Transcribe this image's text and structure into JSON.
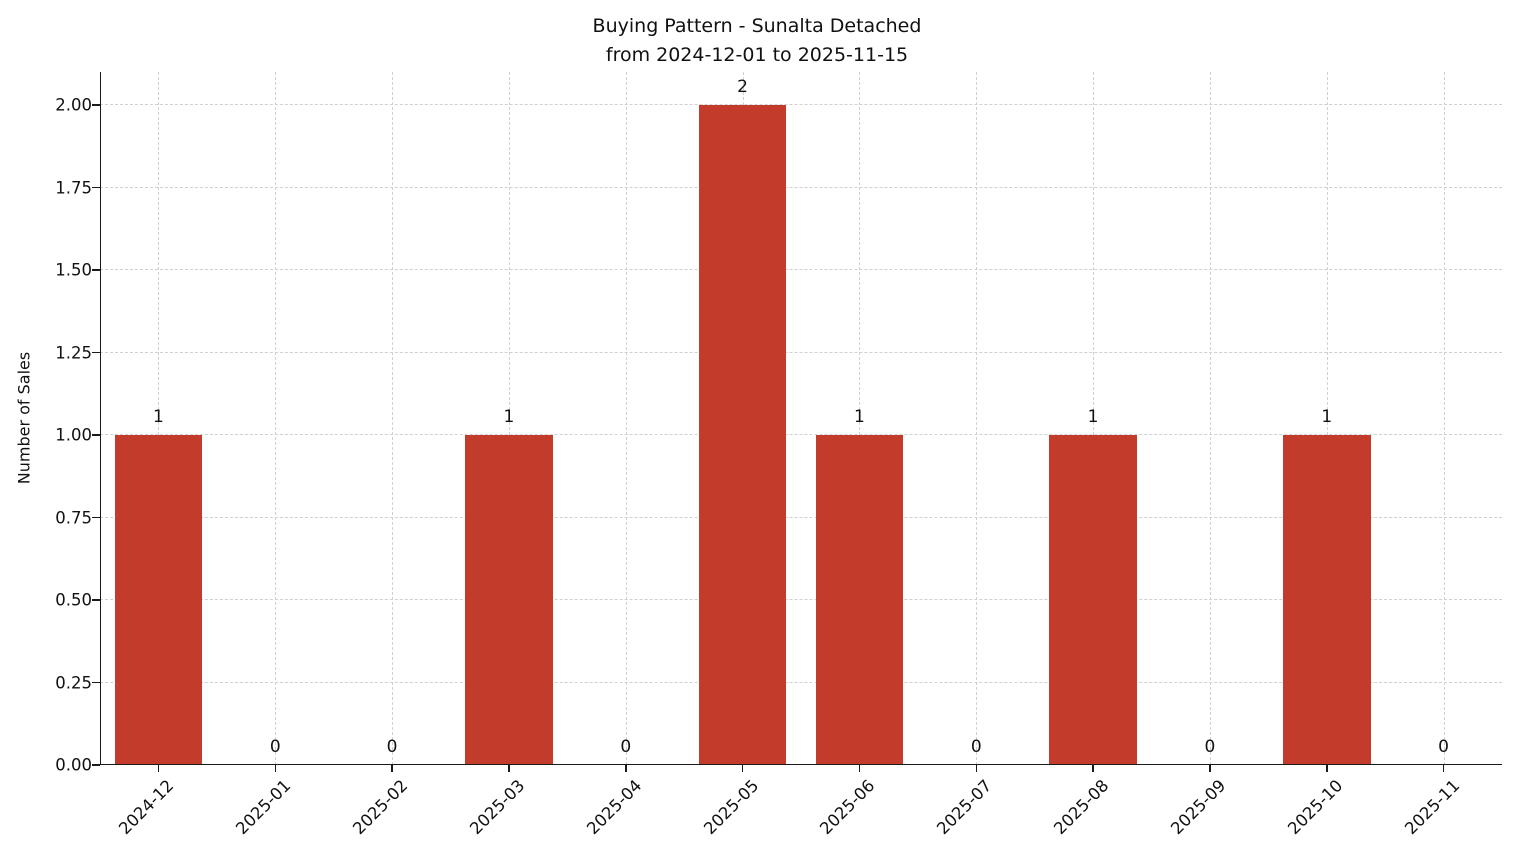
{
  "chart_data": {
    "type": "bar",
    "title": "Buying Pattern - Sunalta Detached\nfrom 2024-12-01 to 2025-11-15",
    "title_lines": [
      "Buying Pattern - Sunalta Detached",
      "from 2024-12-01 to 2025-11-15"
    ],
    "categories": [
      "2024-12",
      "2025-01",
      "2025-02",
      "2025-03",
      "2025-04",
      "2025-05",
      "2025-06",
      "2025-07",
      "2025-08",
      "2025-09",
      "2025-10",
      "2025-11"
    ],
    "values": [
      1,
      0,
      0,
      1,
      0,
      2,
      1,
      0,
      1,
      0,
      1,
      0
    ],
    "bar_labels": [
      "1",
      "0",
      "0",
      "1",
      "0",
      "2",
      "1",
      "0",
      "1",
      "0",
      "1",
      "0"
    ],
    "xlabel": "",
    "ylabel": "Number of Sales",
    "ylim": [
      0,
      2.1
    ],
    "yticks": [
      0,
      0.25,
      0.5,
      0.75,
      1.0,
      1.25,
      1.5,
      1.75,
      2.0
    ],
    "ytick_labels": [
      "0.00",
      "0.25",
      "0.50",
      "0.75",
      "1.00",
      "1.25",
      "1.50",
      "1.75",
      "2.00"
    ],
    "bar_color": "#c23b2b",
    "grid": true,
    "grid_color": "#d0d0d0",
    "legend_position": "none"
  }
}
